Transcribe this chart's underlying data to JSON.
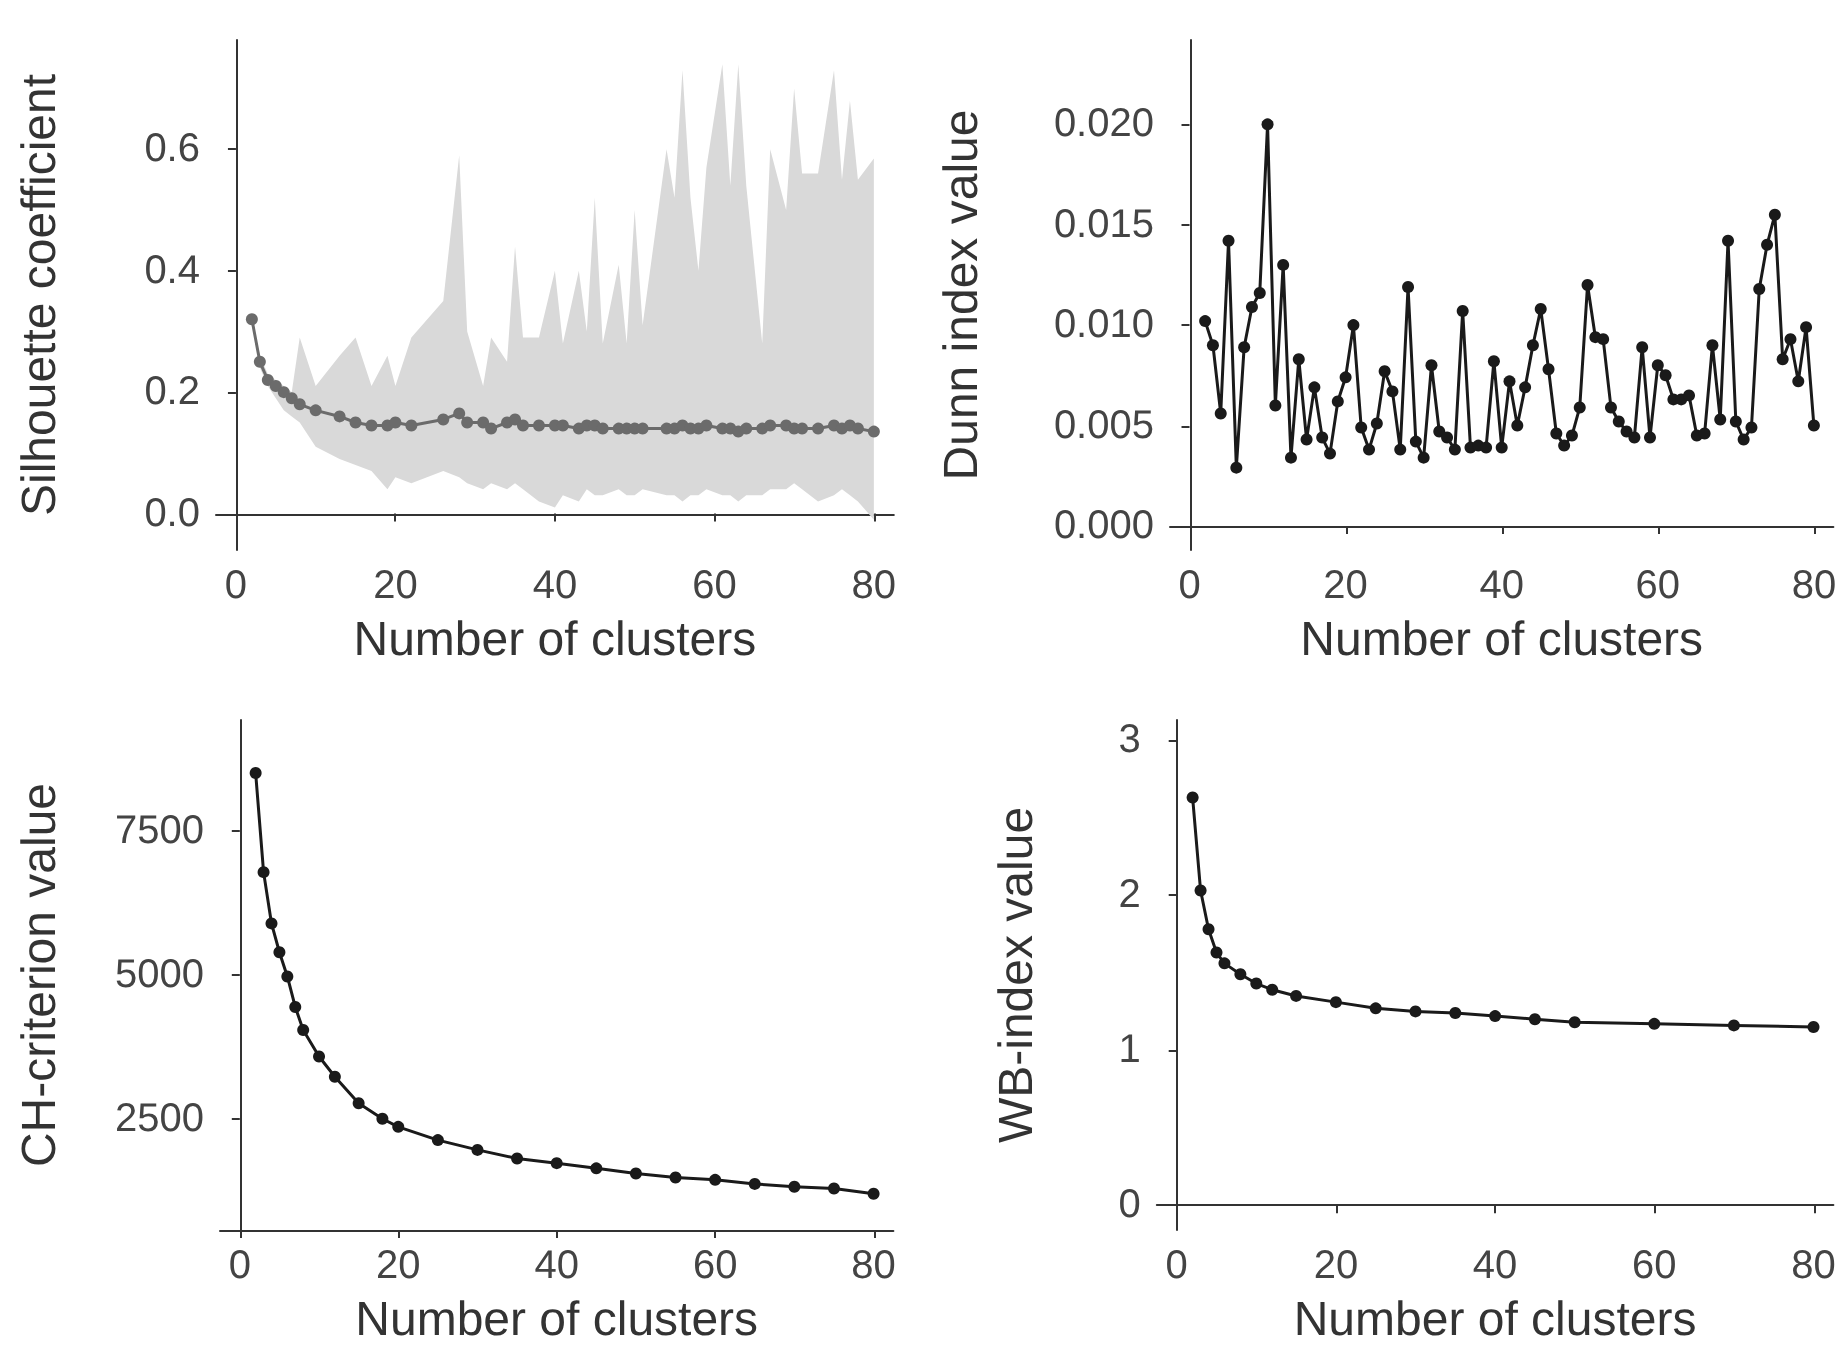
{
  "chart_data": [
    {
      "type": "line",
      "xlabel": "Number of clusters",
      "ylabel": "Silhouette coefficient",
      "xlim": [
        -2.5,
        82.5
      ],
      "ylim": [
        -0.06,
        0.78
      ],
      "xticks": [
        0,
        20,
        40,
        60,
        80
      ],
      "yticks": [
        {
          "value": 0,
          "label": "0.0"
        },
        {
          "value": 0.2,
          "label": "0.2"
        },
        {
          "value": 0.4,
          "label": "0.4"
        },
        {
          "value": 0.6,
          "label": "0.6"
        }
      ],
      "marker": "circle",
      "line_style": "solid",
      "series": [
        {
          "color": "#6b6b6b",
          "x": [
            2,
            3,
            4,
            5,
            6,
            7,
            8,
            10,
            13,
            15,
            17,
            19,
            20,
            22,
            26,
            28,
            29,
            31,
            32,
            34,
            35,
            36,
            38,
            40,
            41,
            43,
            44,
            45,
            46,
            48,
            49,
            50,
            51,
            54,
            55,
            56,
            57,
            58,
            59,
            61,
            62,
            63,
            64,
            66,
            67,
            69,
            70,
            71,
            73,
            75,
            76,
            77,
            78,
            80
          ],
          "values": [
            0.32,
            0.25,
            0.22,
            0.21,
            0.2,
            0.19,
            0.18,
            0.17,
            0.16,
            0.15,
            0.145,
            0.145,
            0.15,
            0.145,
            0.155,
            0.165,
            0.15,
            0.15,
            0.14,
            0.15,
            0.155,
            0.145,
            0.145,
            0.145,
            0.145,
            0.14,
            0.145,
            0.145,
            0.14,
            0.14,
            0.14,
            0.14,
            0.14,
            0.14,
            0.14,
            0.145,
            0.14,
            0.14,
            0.145,
            0.14,
            0.14,
            0.135,
            0.14,
            0.14,
            0.145,
            0.145,
            0.14,
            0.14,
            0.14,
            0.145,
            0.14,
            0.145,
            0.14,
            0.135
          ],
          "upper": [
            0.32,
            0.26,
            0.23,
            0.22,
            0.21,
            0.2,
            0.29,
            0.21,
            0.26,
            0.29,
            0.21,
            0.26,
            0.21,
            0.29,
            0.35,
            0.59,
            0.3,
            0.21,
            0.29,
            0.25,
            0.44,
            0.29,
            0.29,
            0.4,
            0.28,
            0.4,
            0.3,
            0.52,
            0.28,
            0.41,
            0.28,
            0.5,
            0.31,
            0.6,
            0.52,
            0.73,
            0.52,
            0.4,
            0.57,
            0.74,
            0.54,
            0.74,
            0.54,
            0.28,
            0.6,
            0.5,
            0.7,
            0.56,
            0.56,
            0.73,
            0.55,
            0.68,
            0.55,
            0.585
          ],
          "lower": [
            0.32,
            0.24,
            0.21,
            0.19,
            0.17,
            0.16,
            0.15,
            0.11,
            0.09,
            0.08,
            0.07,
            0.04,
            0.06,
            0.05,
            0.07,
            0.06,
            0.05,
            0.04,
            0.05,
            0.04,
            0.05,
            0.04,
            0.02,
            0.01,
            0.03,
            0.02,
            0.04,
            0.03,
            0.03,
            0.04,
            0.03,
            0.03,
            0.04,
            0.03,
            0.03,
            0.02,
            0.03,
            0.03,
            0.04,
            0.03,
            0.03,
            0.02,
            0.03,
            0.03,
            0.04,
            0.04,
            0.05,
            0.04,
            0.02,
            0.03,
            0.04,
            0.03,
            0.02,
            -0.01
          ]
        }
      ]
    },
    {
      "type": "line",
      "xlabel": "Number of clusters",
      "ylabel": "Dunn index value",
      "xlim": [
        -2.5,
        82.5
      ],
      "ylim": [
        -0.0012,
        0.0242
      ],
      "xticks": [
        0,
        20,
        40,
        60,
        80
      ],
      "yticks": [
        {
          "value": 0,
          "label": "0.000"
        },
        {
          "value": 0.005,
          "label": "0.005"
        },
        {
          "value": 0.01,
          "label": "0.010"
        },
        {
          "value": 0.015,
          "label": "0.015"
        },
        {
          "value": 0.02,
          "label": "0.020"
        }
      ],
      "marker": "circle",
      "line_style": "solid",
      "series": [
        {
          "color": "#1a1a1a",
          "x": [
            2,
            3,
            4,
            5,
            6,
            7,
            8,
            9,
            10,
            11,
            12,
            13,
            14,
            15,
            16,
            17,
            18,
            19,
            20,
            21,
            22,
            23,
            24,
            25,
            26,
            27,
            28,
            29,
            30,
            31,
            32,
            33,
            34,
            35,
            36,
            37,
            38,
            39,
            40,
            41,
            42,
            43,
            44,
            45,
            46,
            47,
            48,
            49,
            50,
            51,
            52,
            53,
            54,
            55,
            56,
            57,
            58,
            59,
            60,
            61,
            62,
            63,
            64,
            65,
            66,
            67,
            68,
            69,
            70,
            71,
            72,
            73,
            74,
            75,
            76,
            77,
            78,
            79,
            80
          ],
          "values": [
            0.0102,
            0.009,
            0.0056,
            0.0142,
            0.0029,
            0.0089,
            0.0109,
            0.0116,
            0.02,
            0.006,
            0.013,
            0.0034,
            0.0083,
            0.0043,
            0.0069,
            0.0044,
            0.0036,
            0.0062,
            0.0074,
            0.01,
            0.0049,
            0.0038,
            0.0051,
            0.0077,
            0.0067,
            0.0038,
            0.0119,
            0.0042,
            0.0034,
            0.008,
            0.0047,
            0.0044,
            0.0038,
            0.0107,
            0.0039,
            0.004,
            0.0039,
            0.0082,
            0.0039,
            0.0072,
            0.005,
            0.0069,
            0.009,
            0.0108,
            0.0078,
            0.0046,
            0.004,
            0.0045,
            0.0059,
            0.012,
            0.0094,
            0.0093,
            0.0059,
            0.0052,
            0.0047,
            0.0044,
            0.0089,
            0.0044,
            0.008,
            0.0075,
            0.0063,
            0.0063,
            0.0065,
            0.0045,
            0.0046,
            0.009,
            0.0053,
            0.0142,
            0.0052,
            0.0043,
            0.0049,
            0.0118,
            0.014,
            0.0155,
            0.0083,
            0.0093,
            0.0072,
            0.0099,
            0.005
          ]
        }
      ]
    },
    {
      "type": "line",
      "xlabel": "Number of clusters",
      "ylabel": "CH-criterion value",
      "xlim": [
        -2.5,
        82.5
      ],
      "ylim": [
        570,
        9420
      ],
      "xticks": [
        0,
        20,
        40,
        60,
        80
      ],
      "yticks": [
        2500,
        5000,
        7500
      ],
      "marker": "circle",
      "line_style": "solid",
      "series": [
        {
          "color": "#1a1a1a",
          "x": [
            2,
            3,
            4,
            5,
            6,
            7,
            8,
            10,
            12,
            15,
            18,
            20,
            25,
            30,
            35,
            40,
            45,
            50,
            55,
            60,
            65,
            70,
            75,
            80
          ],
          "values": [
            8500,
            6780,
            5890,
            5390,
            4970,
            4440,
            4040,
            3580,
            3230,
            2770,
            2500,
            2360,
            2130,
            1960,
            1810,
            1730,
            1640,
            1550,
            1480,
            1440,
            1370,
            1320,
            1290,
            1200
          ]
        }
      ]
    },
    {
      "type": "line",
      "xlabel": "Number of clusters",
      "ylabel": "WB-index value",
      "xlim": [
        -2.5,
        82.5
      ],
      "ylim": [
        -0.16,
        3.13
      ],
      "xticks": [
        0,
        20,
        40,
        60,
        80
      ],
      "yticks": [
        0,
        1,
        2,
        3
      ],
      "marker": "circle",
      "line_style": "solid",
      "series": [
        {
          "color": "#1a1a1a",
          "x": [
            2,
            3,
            4,
            5,
            6,
            8,
            10,
            12,
            15,
            20,
            25,
            30,
            35,
            40,
            45,
            50,
            60,
            70,
            80
          ],
          "values": [
            2.63,
            2.03,
            1.78,
            1.63,
            1.56,
            1.49,
            1.43,
            1.39,
            1.35,
            1.31,
            1.27,
            1.25,
            1.24,
            1.22,
            1.2,
            1.18,
            1.17,
            1.16,
            1.15
          ]
        }
      ]
    }
  ]
}
